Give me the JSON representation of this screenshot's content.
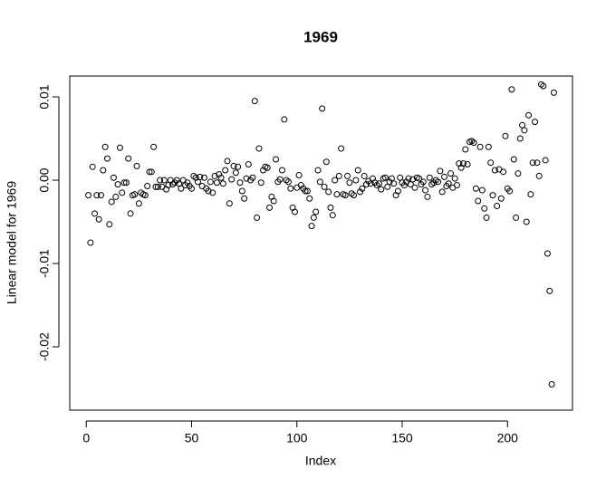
{
  "chart_data": {
    "type": "scatter",
    "title": "1969",
    "xlabel": "Index",
    "ylabel": "Linear model for 1969",
    "color": "#000000",
    "xlim": [
      -7.84,
      230.84
    ],
    "xticks": [
      0,
      50,
      100,
      150,
      200
    ],
    "ylim": [
      -0.0276,
      0.0125
    ],
    "yticks": [
      -0.02,
      -0.01,
      {
        "value": 0,
        "label": "0.00"
      },
      0.01
    ],
    "values": [
      -0.0018,
      -0.0075,
      0.0016,
      -0.004,
      -0.0018,
      -0.0047,
      -0.0018,
      0.0012,
      0.004,
      0.0026,
      -0.0053,
      -0.0026,
      0.0003,
      -0.002,
      -0.0005,
      0.0039,
      -0.0015,
      -0.0003,
      -0.0003,
      0.0026,
      -0.004,
      -0.0018,
      -0.0017,
      0.0017,
      -0.0028,
      -0.0015,
      -0.0017,
      -0.0018,
      -0.0007,
      0.001,
      0.001,
      0.004,
      -0.0008,
      -0.0008,
      0,
      -0.0008,
      0,
      -0.0011,
      -0.0006,
      0,
      -0.0005,
      -0.0003,
      0,
      -0.0004,
      -0.001,
      0,
      -0.0006,
      -0.0003,
      -0.0007,
      -0.001,
      0.0005,
      0.0003,
      -0.0002,
      0.0004,
      -0.0007,
      0.0003,
      -0.001,
      -0.0013,
      -0.0002,
      -0.0015,
      0.0005,
      -0.0003,
      0.0007,
      0.0003,
      -0.0004,
      0.0012,
      0.0023,
      -0.0028,
      0.0001,
      0.0017,
      0.0009,
      0.0016,
      -0.0003,
      -0.0013,
      -0.0022,
      0.0002,
      0.0019,
      0,
      0.0003,
      0.0095,
      -0.0045,
      0.0038,
      -0.0003,
      0.0012,
      0.0016,
      0.0015,
      -0.0033,
      -0.002,
      -0.0025,
      0.0025,
      -0.0002,
      0.0001,
      0.0012,
      0.0073,
      0,
      -0.0002,
      -0.001,
      -0.0033,
      -0.0038,
      -0.0009,
      0.0006,
      -0.0006,
      -0.001,
      -0.0013,
      -0.0013,
      -0.0022,
      -0.0055,
      -0.0045,
      -0.0038,
      0.0012,
      -0.0002,
      0.0086,
      -0.0008,
      0.0022,
      -0.0014,
      -0.0033,
      -0.0042,
      0,
      -0.0017,
      0.0005,
      0.0038,
      -0.0017,
      -0.0018,
      0.0005,
      -0.0003,
      -0.0016,
      -0.0018,
      0,
      0.0012,
      -0.0014,
      -0.001,
      0.0005,
      -0.0005,
      -0.0001,
      -0.0004,
      0.0002,
      -0.0003,
      -0.0006,
      -0.0004,
      -0.0011,
      0.0002,
      0.0003,
      -0.0008,
      -0.0002,
      0.0002,
      -0.0004,
      -0.0018,
      -0.0013,
      0.0003,
      -0.0003,
      -0.0006,
      -0.0002,
      0.0002,
      -0.0005,
      0.0001,
      -0.0009,
      0.0003,
      0.0002,
      -0.0005,
      -0.0002,
      -0.0012,
      -0.002,
      0.0003,
      -0.0005,
      -0.0003,
      0,
      -0.0002,
      0.0011,
      -0.0014,
      0.0004,
      -0.0007,
      -0.0004,
      0.0008,
      -0.0009,
      0.0002,
      -0.0006,
      0.002,
      0.0015,
      0.002,
      0.0037,
      0.0019,
      0.0046,
      0.0047,
      0.0045,
      -0.001,
      -0.0025,
      0.004,
      -0.0012,
      -0.0034,
      -0.0045,
      0.004,
      0.0021,
      -0.0018,
      0.0012,
      -0.0031,
      0.0013,
      -0.0022,
      0.001,
      0.0053,
      -0.001,
      -0.0013,
      0.0109,
      0.0025,
      -0.0045,
      0.0008,
      0.005,
      0.0066,
      0.006,
      -0.005,
      0.0078,
      -0.0017,
      0.0021,
      0.007,
      0.0021,
      0.0005,
      0.0115,
      0.0113,
      0.0024,
      -0.0088,
      -0.0133,
      -0.0245,
      0.0105
    ]
  }
}
